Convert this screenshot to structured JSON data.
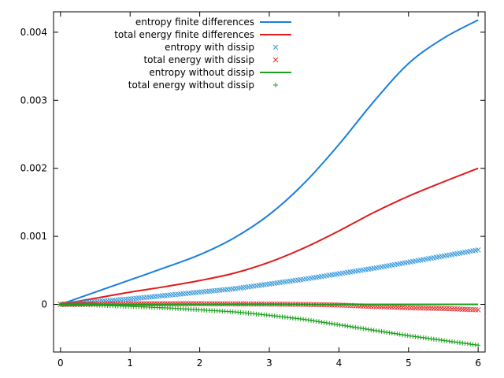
{
  "chart_data": {
    "type": "line",
    "xlim": [
      -0.1,
      6.1
    ],
    "ylim": [
      -0.0007,
      0.0043
    ],
    "x_ticks": [
      "0",
      "1",
      "2",
      "3",
      "4",
      "5",
      "6"
    ],
    "y_ticks": [
      "0",
      "0.001",
      "0.002",
      "0.003",
      "0.004"
    ],
    "grid": false,
    "legend_position": "top-left",
    "series": [
      {
        "name": "entropy finite differences",
        "style": "line",
        "color": "#1a7ede",
        "x": [
          0,
          0.5,
          1,
          1.5,
          2,
          2.5,
          3,
          3.5,
          4,
          4.5,
          5,
          5.5,
          6
        ],
        "y": [
          0,
          0.00018,
          0.00036,
          0.00054,
          0.00073,
          0.00098,
          0.00132,
          0.00178,
          0.00235,
          0.00298,
          0.00354,
          0.00391,
          0.00418
        ]
      },
      {
        "name": "total energy finite differences",
        "style": "line",
        "color": "#e01a1a",
        "x": [
          0,
          0.5,
          1,
          1.5,
          2,
          2.5,
          3,
          3.5,
          4,
          4.5,
          5,
          5.5,
          6
        ],
        "y": [
          0,
          9e-05,
          0.00018,
          0.00026,
          0.00035,
          0.00046,
          0.00062,
          0.00083,
          0.00108,
          0.00135,
          0.00159,
          0.0018,
          0.002
        ]
      },
      {
        "name": "entropy with dissip",
        "style": "x-markers",
        "color": "#3498db",
        "x": [
          0,
          0.5,
          1,
          1.5,
          2,
          2.5,
          3,
          3.5,
          4,
          4.5,
          5,
          5.5,
          6
        ],
        "y": [
          0,
          4e-05,
          8e-05,
          0.00013,
          0.00018,
          0.00023,
          0.0003,
          0.00037,
          0.00045,
          0.00053,
          0.00062,
          0.00071,
          0.0008
        ]
      },
      {
        "name": "total energy with dissip",
        "style": "x-markers",
        "color": "#e03030",
        "x": [
          0,
          0.5,
          1,
          1.5,
          2,
          2.5,
          3,
          3.5,
          4,
          4.5,
          5,
          5.5,
          6
        ],
        "y": [
          0,
          8e-06,
          1e-05,
          1e-05,
          1e-05,
          8e-06,
          5e-06,
          0,
          -1e-05,
          -3e-05,
          -5e-05,
          -6e-05,
          -8e-05
        ]
      },
      {
        "name": "entropy without dissip",
        "style": "line",
        "color": "#1aa01a",
        "x": [
          0,
          6
        ],
        "y": [
          0,
          0
        ]
      },
      {
        "name": "total energy without dissip",
        "style": "plus-markers",
        "color": "#1aa01a",
        "x": [
          0,
          0.5,
          1,
          1.5,
          2,
          2.5,
          3,
          3.5,
          4,
          4.5,
          5,
          5.5,
          6
        ],
        "y": [
          0,
          -1e-05,
          -3e-05,
          -5e-05,
          -8e-05,
          -0.00011,
          -0.00016,
          -0.00022,
          -0.0003,
          -0.00038,
          -0.00046,
          -0.00053,
          -0.0006
        ]
      }
    ]
  }
}
